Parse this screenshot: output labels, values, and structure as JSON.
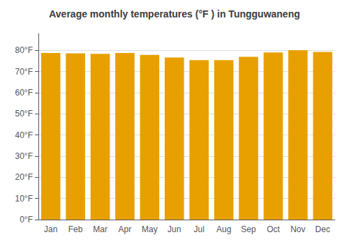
{
  "chart_data": {
    "type": "bar",
    "title": "Average monthly temperatures (°F ) in Tungguwaneng",
    "categories": [
      "Jan",
      "Feb",
      "Mar",
      "Apr",
      "May",
      "Jun",
      "Jul",
      "Aug",
      "Sep",
      "Oct",
      "Nov",
      "Dec"
    ],
    "values": [
      78.8,
      78.6,
      78.4,
      78.8,
      77.9,
      76.6,
      75.4,
      75.4,
      77.0,
      79.0,
      80.1,
      79.3
    ],
    "color": "#E8A000",
    "ylim": [
      0,
      88
    ],
    "yticks": [
      {
        "value": 0,
        "label": "0°F"
      },
      {
        "value": 10,
        "label": "10°F"
      },
      {
        "value": 20,
        "label": "20°F"
      },
      {
        "value": 30,
        "label": "30°F"
      },
      {
        "value": 40,
        "label": "40°F"
      },
      {
        "value": 50,
        "label": "50°F"
      },
      {
        "value": 60,
        "label": "60°F"
      },
      {
        "value": 70,
        "label": "70°F"
      },
      {
        "value": 80,
        "label": "80°F"
      }
    ],
    "grid": true
  }
}
